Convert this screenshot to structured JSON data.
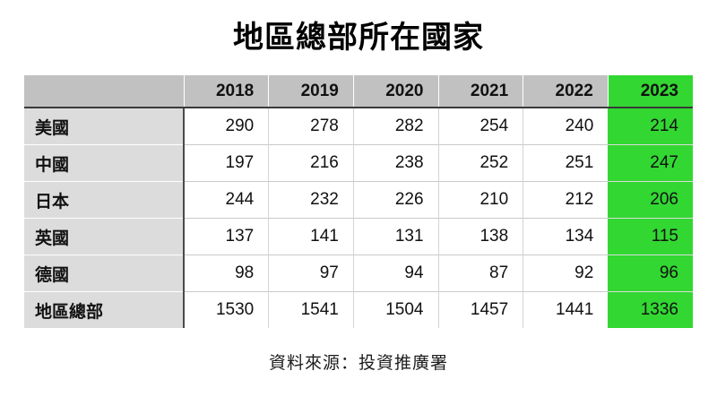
{
  "title": "地區總部所在國家",
  "source": "資料來源：投資推廣署",
  "colors": {
    "highlight_green": "#32d732",
    "header_gray": "#c1c1c1",
    "label_gray": "#dcdcdc",
    "heavy_border": "#3a3a3a"
  },
  "chart_data": {
    "type": "table",
    "title": "地區總部所在國家",
    "columns": [
      "",
      "2018",
      "2019",
      "2020",
      "2021",
      "2022",
      "2023"
    ],
    "highlighted_column": "2023",
    "rows": [
      {
        "label": "美國",
        "values": [
          290,
          278,
          282,
          254,
          240,
          214
        ]
      },
      {
        "label": "中國",
        "values": [
          197,
          216,
          238,
          252,
          251,
          247
        ]
      },
      {
        "label": "日本",
        "values": [
          244,
          232,
          226,
          210,
          212,
          206
        ]
      },
      {
        "label": "英國",
        "values": [
          137,
          141,
          131,
          138,
          134,
          115
        ]
      },
      {
        "label": "德國",
        "values": [
          98,
          97,
          94,
          87,
          92,
          96
        ]
      },
      {
        "label": "地區總部",
        "values": [
          1530,
          1541,
          1504,
          1457,
          1441,
          1336
        ]
      }
    ],
    "source": "資料來源：投資推廣署"
  }
}
